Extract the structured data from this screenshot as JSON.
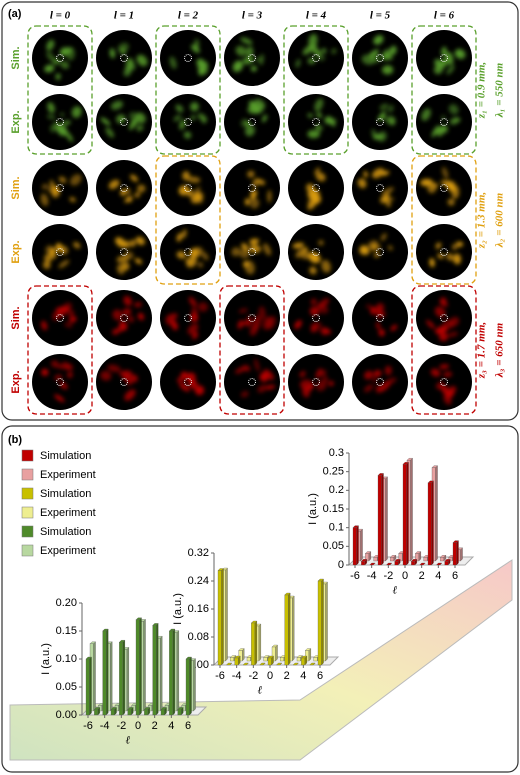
{
  "panel_a": {
    "label": "(a)",
    "columns": [
      "l = 0",
      "l = 1",
      "l = 2",
      "l = 3",
      "l = 4",
      "l = 5",
      "l = 6"
    ],
    "groups": [
      {
        "rows": [
          "Sim.",
          "Exp."
        ],
        "z": "z₁ = 0.9 mm,",
        "lambda": "λ₁ = 550 nm",
        "color": "#5aa02c"
      },
      {
        "rows": [
          "Sim.",
          "Exp."
        ],
        "z": "z₂ = 1.3 mm,",
        "lambda": "λ₂ = 600 nm",
        "color": "#e0a010"
      },
      {
        "rows": [
          "Sim.",
          "Exp."
        ],
        "z": "z₃ = 1.7 mm,",
        "lambda": "λ₃ = 650 nm",
        "color": "#c00000"
      }
    ]
  },
  "panel_b": {
    "label": "(b)"
  },
  "chart_data": [
    {
      "type": "bar3d",
      "ylabel": "I (a.u.)",
      "xlabel": "ℓ",
      "x": [
        -6,
        -5,
        -4,
        -3,
        -2,
        -1,
        0,
        1,
        2,
        3,
        4,
        5,
        6
      ],
      "xlim": [
        -6,
        6
      ],
      "xticks": [
        -6,
        -4,
        -2,
        0,
        2,
        4,
        6
      ],
      "ylim": [
        0,
        0.3
      ],
      "yticks": [
        0,
        0.05,
        0.1,
        0.15,
        0.2,
        0.25,
        0.3
      ],
      "series": [
        {
          "name": "Simulation",
          "color": "#c00000",
          "values": [
            0.1,
            0.01,
            0,
            0.24,
            0,
            0.01,
            0.27,
            0.01,
            0,
            0.22,
            0,
            0.01,
            0.06
          ]
        },
        {
          "name": "Experiment",
          "color": "#e8a0a0",
          "values": [
            0.08,
            0.02,
            0.01,
            0.22,
            0.01,
            0.02,
            0.27,
            0.02,
            0.01,
            0.25,
            0.01,
            0.01,
            0.03
          ]
        }
      ]
    },
    {
      "type": "bar3d",
      "ylabel": "I (a.u.)",
      "xlabel": "ℓ",
      "x": [
        -6,
        -5,
        -4,
        -3,
        -2,
        -1,
        0,
        1,
        2,
        3,
        4,
        5,
        6
      ],
      "xlim": [
        -6,
        6
      ],
      "xticks": [
        -6,
        -4,
        -2,
        0,
        2,
        4,
        6
      ],
      "ylim": [
        0,
        0.32
      ],
      "yticks": [
        {
          "value": 0,
          "label": "0.00"
        },
        0.08,
        0.16,
        0.24,
        0.32
      ],
      "series": [
        {
          "name": "Simulation",
          "color": "#c8c000",
          "values": [
            0.27,
            0,
            0.02,
            0,
            0.12,
            0,
            0.02,
            0,
            0.2,
            0,
            0.02,
            0,
            0.24
          ]
        },
        {
          "name": "Experiment",
          "color": "#eeee90",
          "values": [
            0.26,
            0.01,
            0.03,
            0.01,
            0.1,
            0.01,
            0.04,
            0.01,
            0.18,
            0.01,
            0.03,
            0.01,
            0.22
          ]
        }
      ]
    },
    {
      "type": "bar3d",
      "ylabel": "I (a.u.)",
      "xlabel": "ℓ",
      "x": [
        -6,
        -5,
        -4,
        -3,
        -2,
        -1,
        0,
        1,
        2,
        3,
        4,
        5,
        6
      ],
      "xlim": [
        -6,
        6
      ],
      "xticks": [
        -6,
        -4,
        -2,
        0,
        2,
        4,
        6
      ],
      "ylim": [
        0,
        0.2
      ],
      "yticks": [
        {
          "value": 0,
          "label": "0.00"
        },
        0.05,
        {
          "value": 0.1,
          "label": "0.10"
        },
        0.15,
        {
          "value": 0.2,
          "label": "0.20"
        }
      ],
      "series": [
        {
          "name": "Simulation",
          "color": "#4f8a2a",
          "values": [
            0.1,
            0.01,
            0.15,
            0.01,
            0.13,
            0.01,
            0.17,
            0.01,
            0.16,
            0.01,
            0.15,
            0.01,
            0.1
          ]
        },
        {
          "name": "Experiment",
          "color": "#b8d8a0",
          "values": [
            0.12,
            0.01,
            0.12,
            0.01,
            0.11,
            0.01,
            0.16,
            0.01,
            0.13,
            0.01,
            0.14,
            0.01,
            0.09
          ]
        }
      ]
    }
  ]
}
